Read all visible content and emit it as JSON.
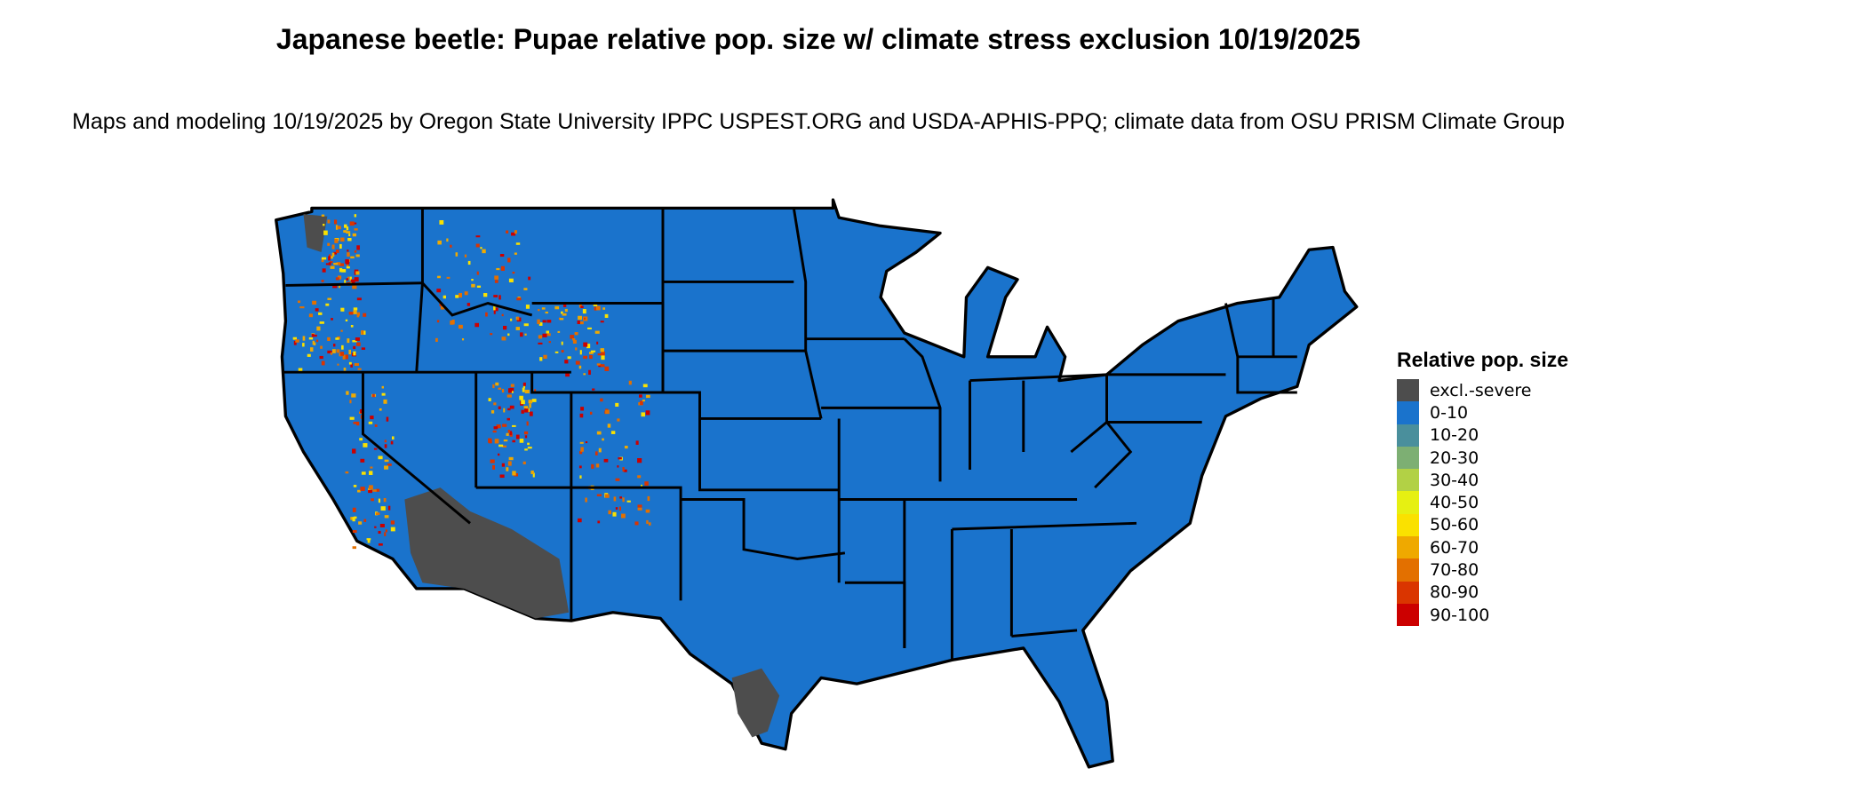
{
  "title": "Japanese beetle: Pupae relative pop. size w/ climate stress exclusion 10/19/2025",
  "subtitle": "Maps and modeling 10/19/2025 by Oregon State University IPPC USPEST.ORG and USDA-APHIS-PPQ; climate data from OSU PRISM Climate Group",
  "legend": {
    "title": "Relative pop. size",
    "items": [
      {
        "label": "excl.-severe",
        "color": "#4d4d4d"
      },
      {
        "label": "0-10",
        "color": "#1a73cc"
      },
      {
        "label": "10-20",
        "color": "#4a8f9c"
      },
      {
        "label": "20-30",
        "color": "#7daf73"
      },
      {
        "label": "30-40",
        "color": "#b2d145"
      },
      {
        "label": "40-50",
        "color": "#e6f012"
      },
      {
        "label": "50-60",
        "color": "#fae100"
      },
      {
        "label": "60-70",
        "color": "#efa900"
      },
      {
        "label": "70-80",
        "color": "#e37000"
      },
      {
        "label": "80-90",
        "color": "#da3500"
      },
      {
        "label": "90-100",
        "color": "#cc0000"
      }
    ]
  },
  "map": {
    "region": "Contiguous United States",
    "background_class": "0-10",
    "state_border_color": "#000000"
  }
}
